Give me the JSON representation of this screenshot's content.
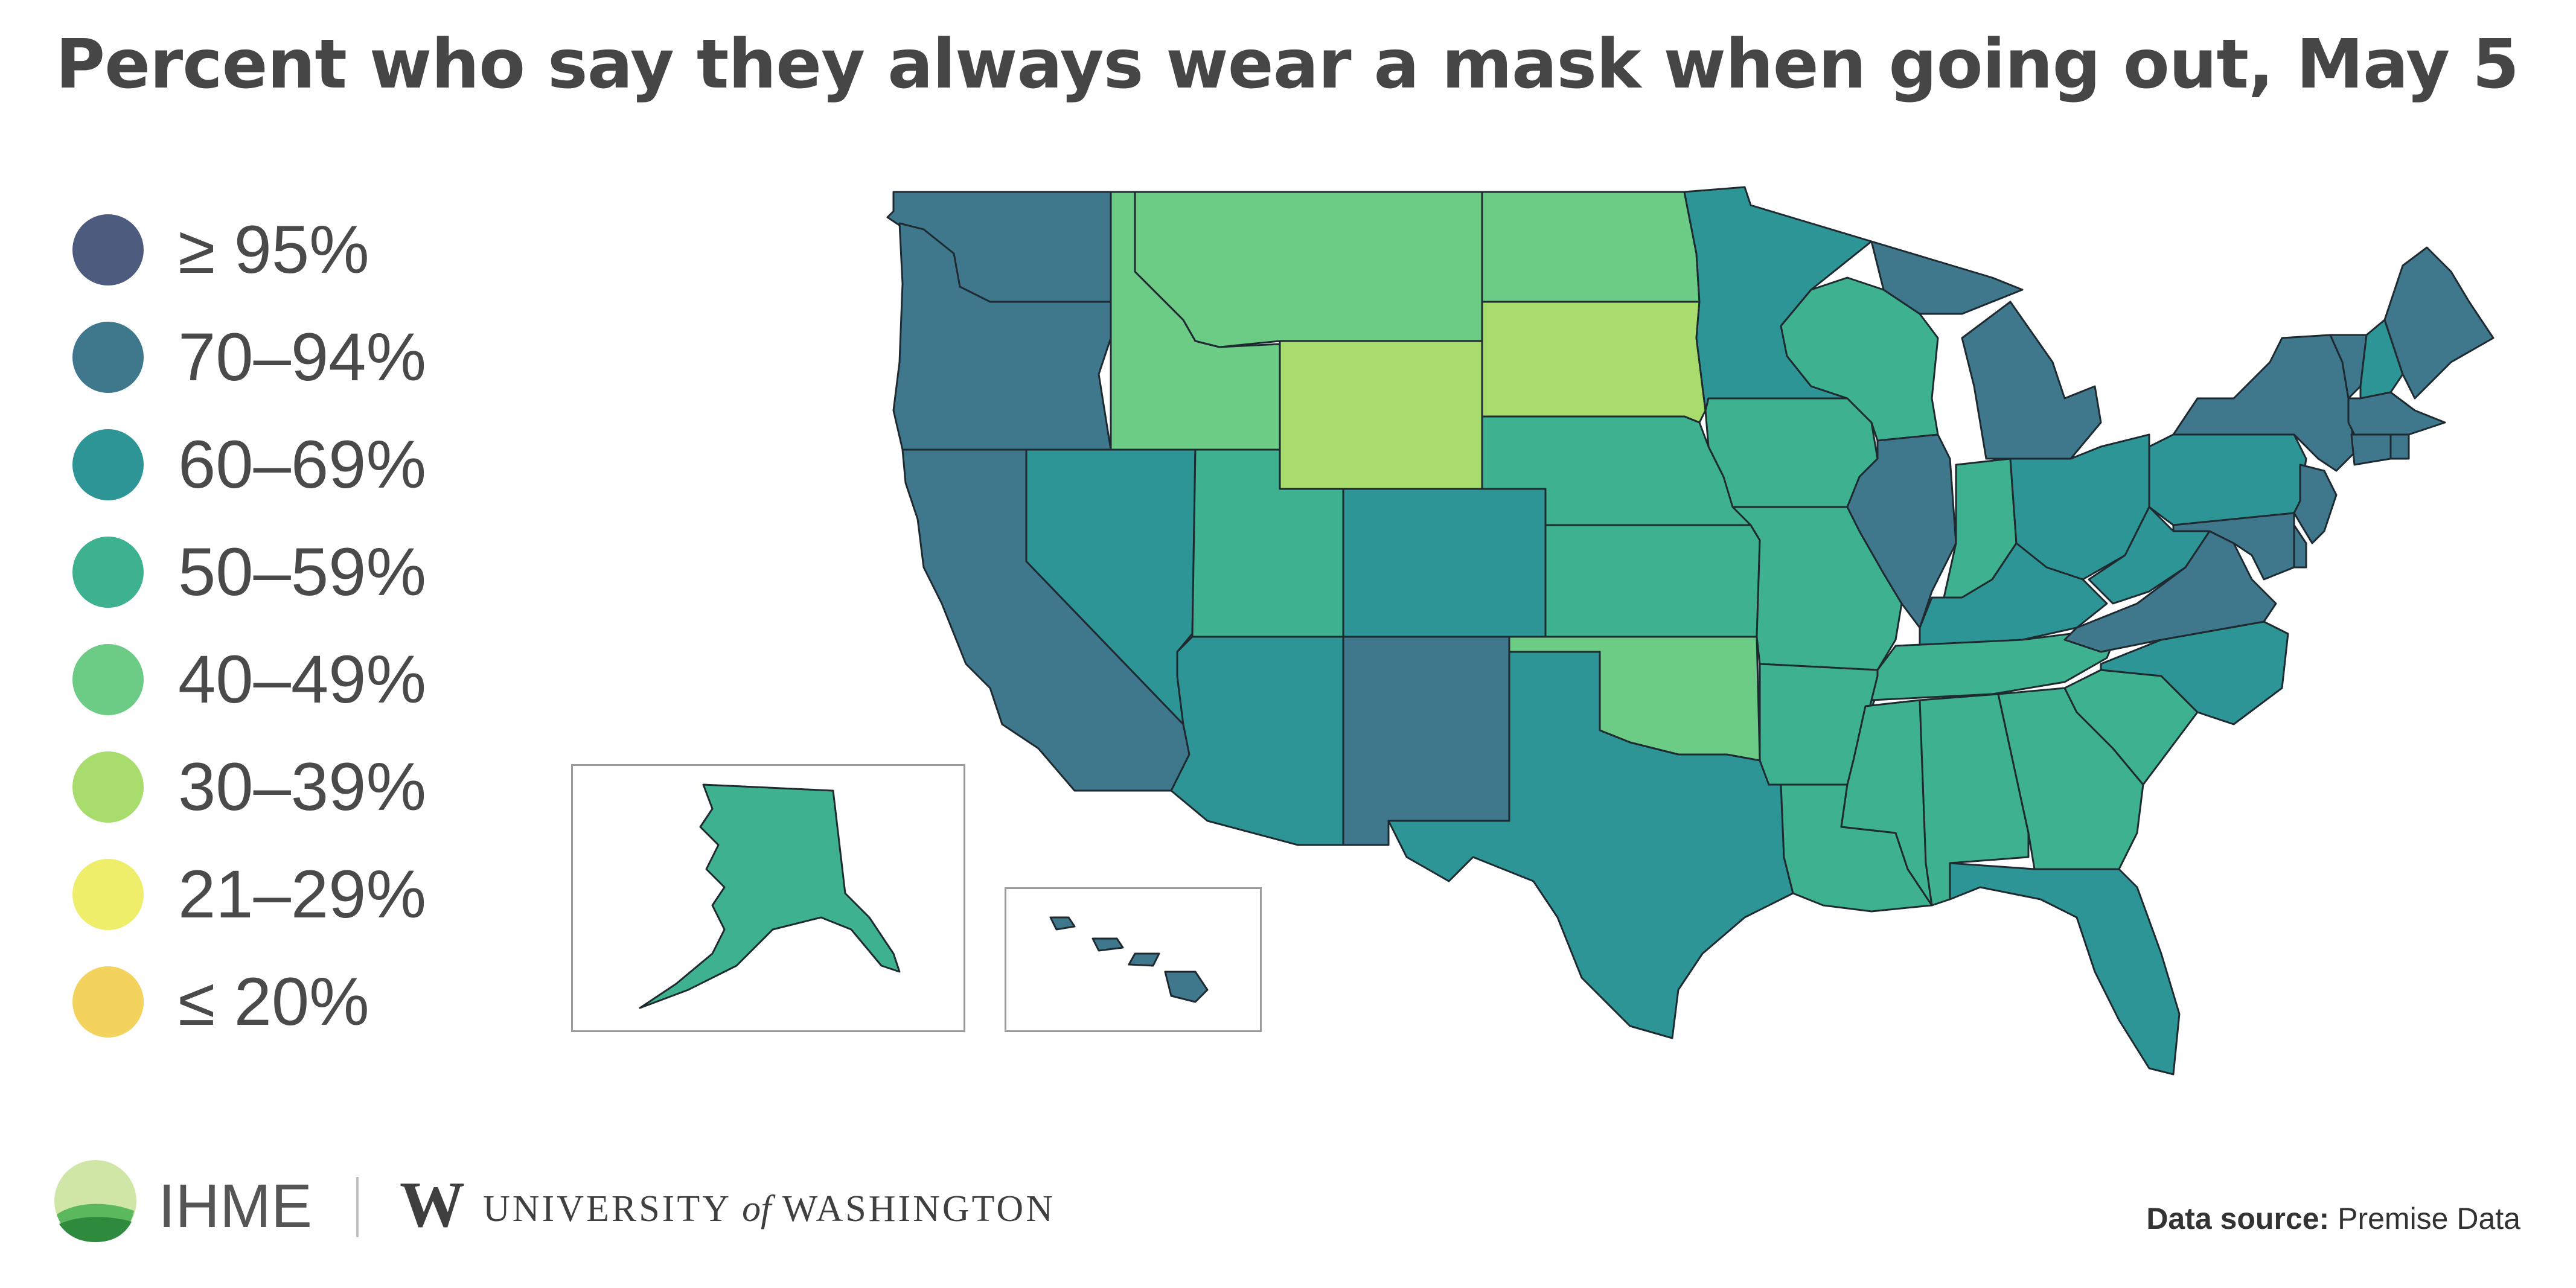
{
  "title": "Percent who say they always wear a mask when going out, May 5",
  "legend": [
    {
      "label": "≥ 95%",
      "color": "#4d5b7e"
    },
    {
      "label": "70–94%",
      "color": "#3f778d"
    },
    {
      "label": "60–69%",
      "color": "#2e9596"
    },
    {
      "label": "50–59%",
      "color": "#3db190"
    },
    {
      "label": "40–49%",
      "color": "#6ccb85"
    },
    {
      "label": "30–39%",
      "color": "#a8dc6c"
    },
    {
      "label": "21–29%",
      "color": "#eeee6b"
    },
    {
      "label": "≤ 20%",
      "color": "#f3d35e"
    }
  ],
  "states": {
    "WA": "70–94%",
    "OR": "70–94%",
    "CA": "70–94%",
    "NV": "60–69%",
    "ID": "40–49%",
    "MT": "40–49%",
    "WY": "30–39%",
    "UT": "50–59%",
    "CO": "60–69%",
    "AZ": "60–69%",
    "NM": "70–94%",
    "ND": "40–49%",
    "SD": "30–39%",
    "NE": "50–59%",
    "KS": "50–59%",
    "OK": "40–49%",
    "TX": "60–69%",
    "MN": "60–69%",
    "IA": "50–59%",
    "MO": "50–59%",
    "AR": "50–59%",
    "LA": "50–59%",
    "WI": "50–59%",
    "IL": "70–94%",
    "MI": "70–94%",
    "IN": "50–59%",
    "OH": "60–69%",
    "KY": "60–69%",
    "TN": "50–59%",
    "MS": "50–59%",
    "AL": "50–59%",
    "GA": "50–59%",
    "FL": "60–69%",
    "SC": "50–59%",
    "NC": "60–69%",
    "VA": "70–94%",
    "WV": "60–69%",
    "PA": "60–69%",
    "NY": "70–94%",
    "VT": "70–94%",
    "NH": "60–69%",
    "ME": "70–94%",
    "MA": "70–94%",
    "RI": "70–94%",
    "CT": "70–94%",
    "NJ": "70–94%",
    "DE": "70–94%",
    "MD": "70–94%",
    "AK": "50–59%",
    "HI": "70–94%"
  },
  "footer": {
    "org": "IHME",
    "university_mark": "W",
    "university_pre": "UNIVERSITY",
    "university_of": "of",
    "university_post": "WASHINGTON",
    "source_label": "Data source:",
    "source_value": "Premise Data"
  }
}
